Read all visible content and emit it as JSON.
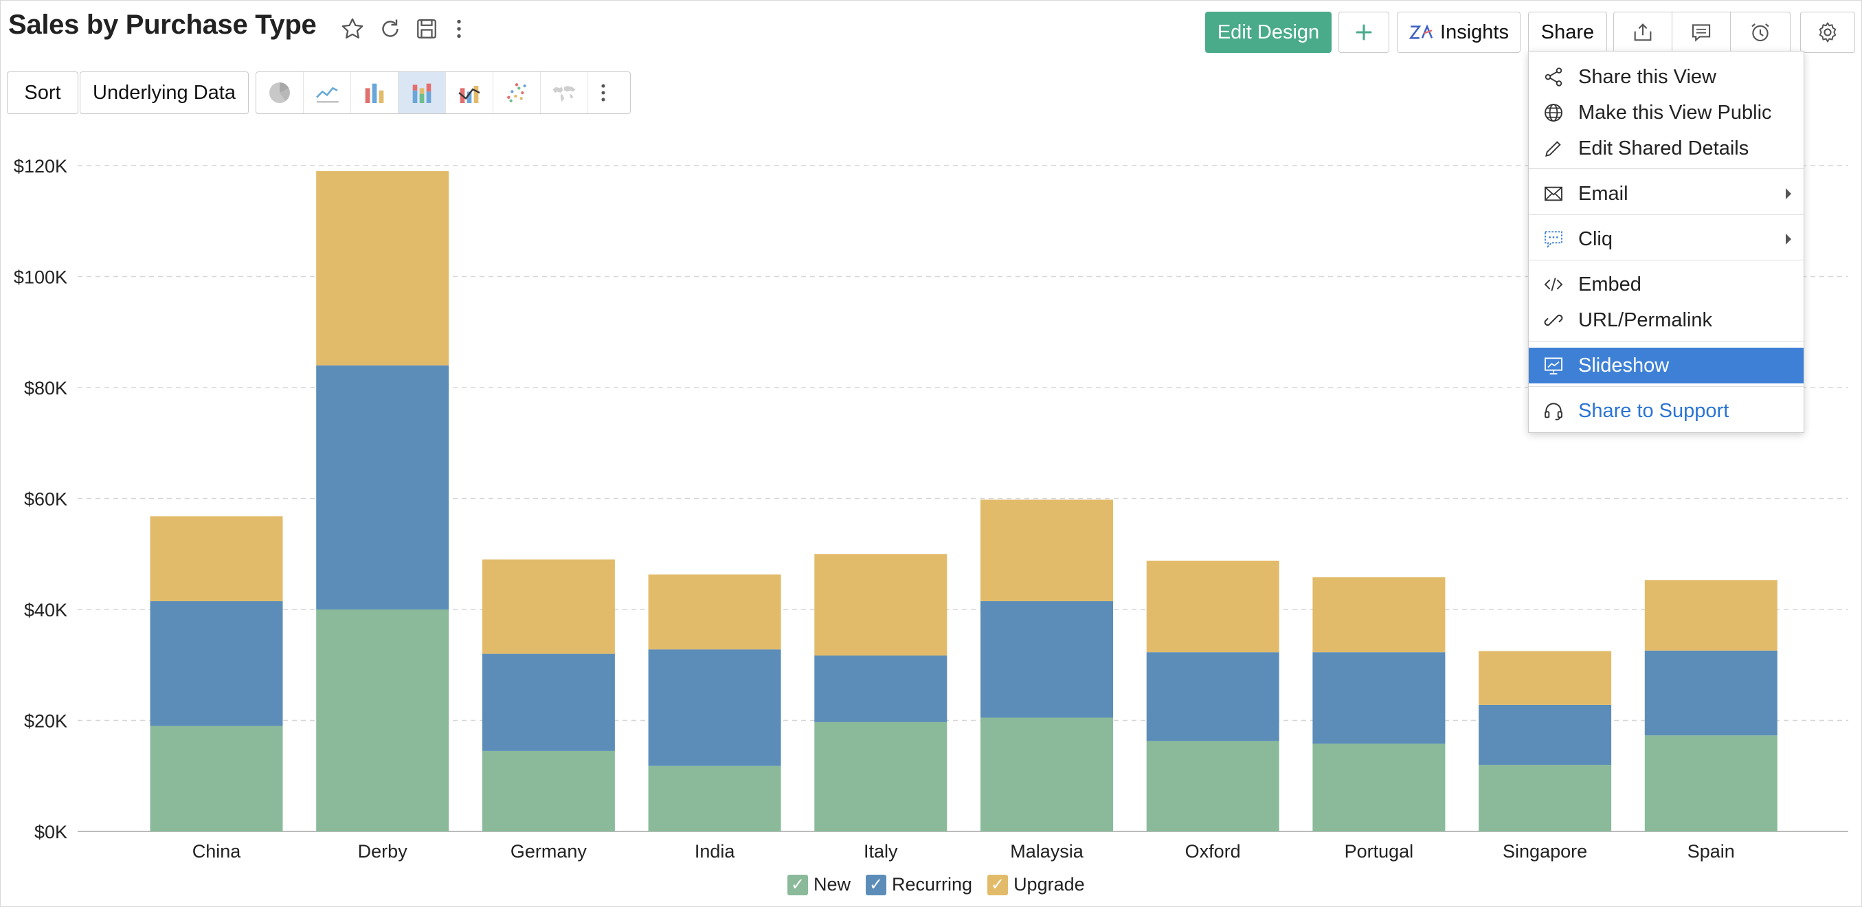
{
  "header": {
    "title": "Sales by Purchase Type",
    "edit_design": "Edit Design",
    "insights": "Insights",
    "share": "Share"
  },
  "subtoolbar": {
    "sort": "Sort",
    "underlying_data": "Underlying Data"
  },
  "share_menu": {
    "items": [
      {
        "label": "Share this View",
        "icon": "share-nodes-icon"
      },
      {
        "label": "Make this View Public",
        "icon": "globe-icon"
      },
      {
        "label": "Edit Shared Details",
        "icon": "pencil-icon"
      },
      {
        "label": "Email",
        "icon": "envelope-icon",
        "submenu": true
      },
      {
        "label": "Cliq",
        "icon": "chat-bubble-icon",
        "submenu": true
      },
      {
        "label": "Embed",
        "icon": "code-icon"
      },
      {
        "label": "URL/Permalink",
        "icon": "link-icon"
      },
      {
        "label": "Slideshow",
        "icon": "slideshow-icon",
        "selected": true
      },
      {
        "label": "Share to Support",
        "icon": "headset-icon"
      }
    ]
  },
  "colors": {
    "new": "#8aba9a",
    "recurring": "#5b8db8",
    "upgrade": "#e2bb6a",
    "accent": "#4aab8a",
    "selected": "#3d80d6"
  },
  "chart_data": {
    "type": "bar",
    "stacked": true,
    "categories": [
      "China",
      "Derby",
      "Germany",
      "India",
      "Italy",
      "Malaysia",
      "Oxford",
      "Portugal",
      "Singapore",
      "Spain"
    ],
    "series": [
      {
        "name": "New",
        "values": [
          19000,
          40000,
          14500,
          11800,
          19700,
          20500,
          16300,
          15800,
          12000,
          17300
        ]
      },
      {
        "name": "Recurring",
        "values": [
          22500,
          44000,
          17500,
          21000,
          12000,
          21000,
          16000,
          16500,
          10800,
          15300
        ]
      },
      {
        "name": "Upgrade",
        "values": [
          15300,
          35000,
          17000,
          13500,
          18300,
          18300,
          16500,
          13500,
          9700,
          12700
        ]
      }
    ],
    "ylim": [
      0,
      120000
    ],
    "yticks": [
      "$0K",
      "$20K",
      "$40K",
      "$60K",
      "$80K",
      "$100K",
      "$120K"
    ],
    "grid": true,
    "legend_position": "bottom"
  }
}
